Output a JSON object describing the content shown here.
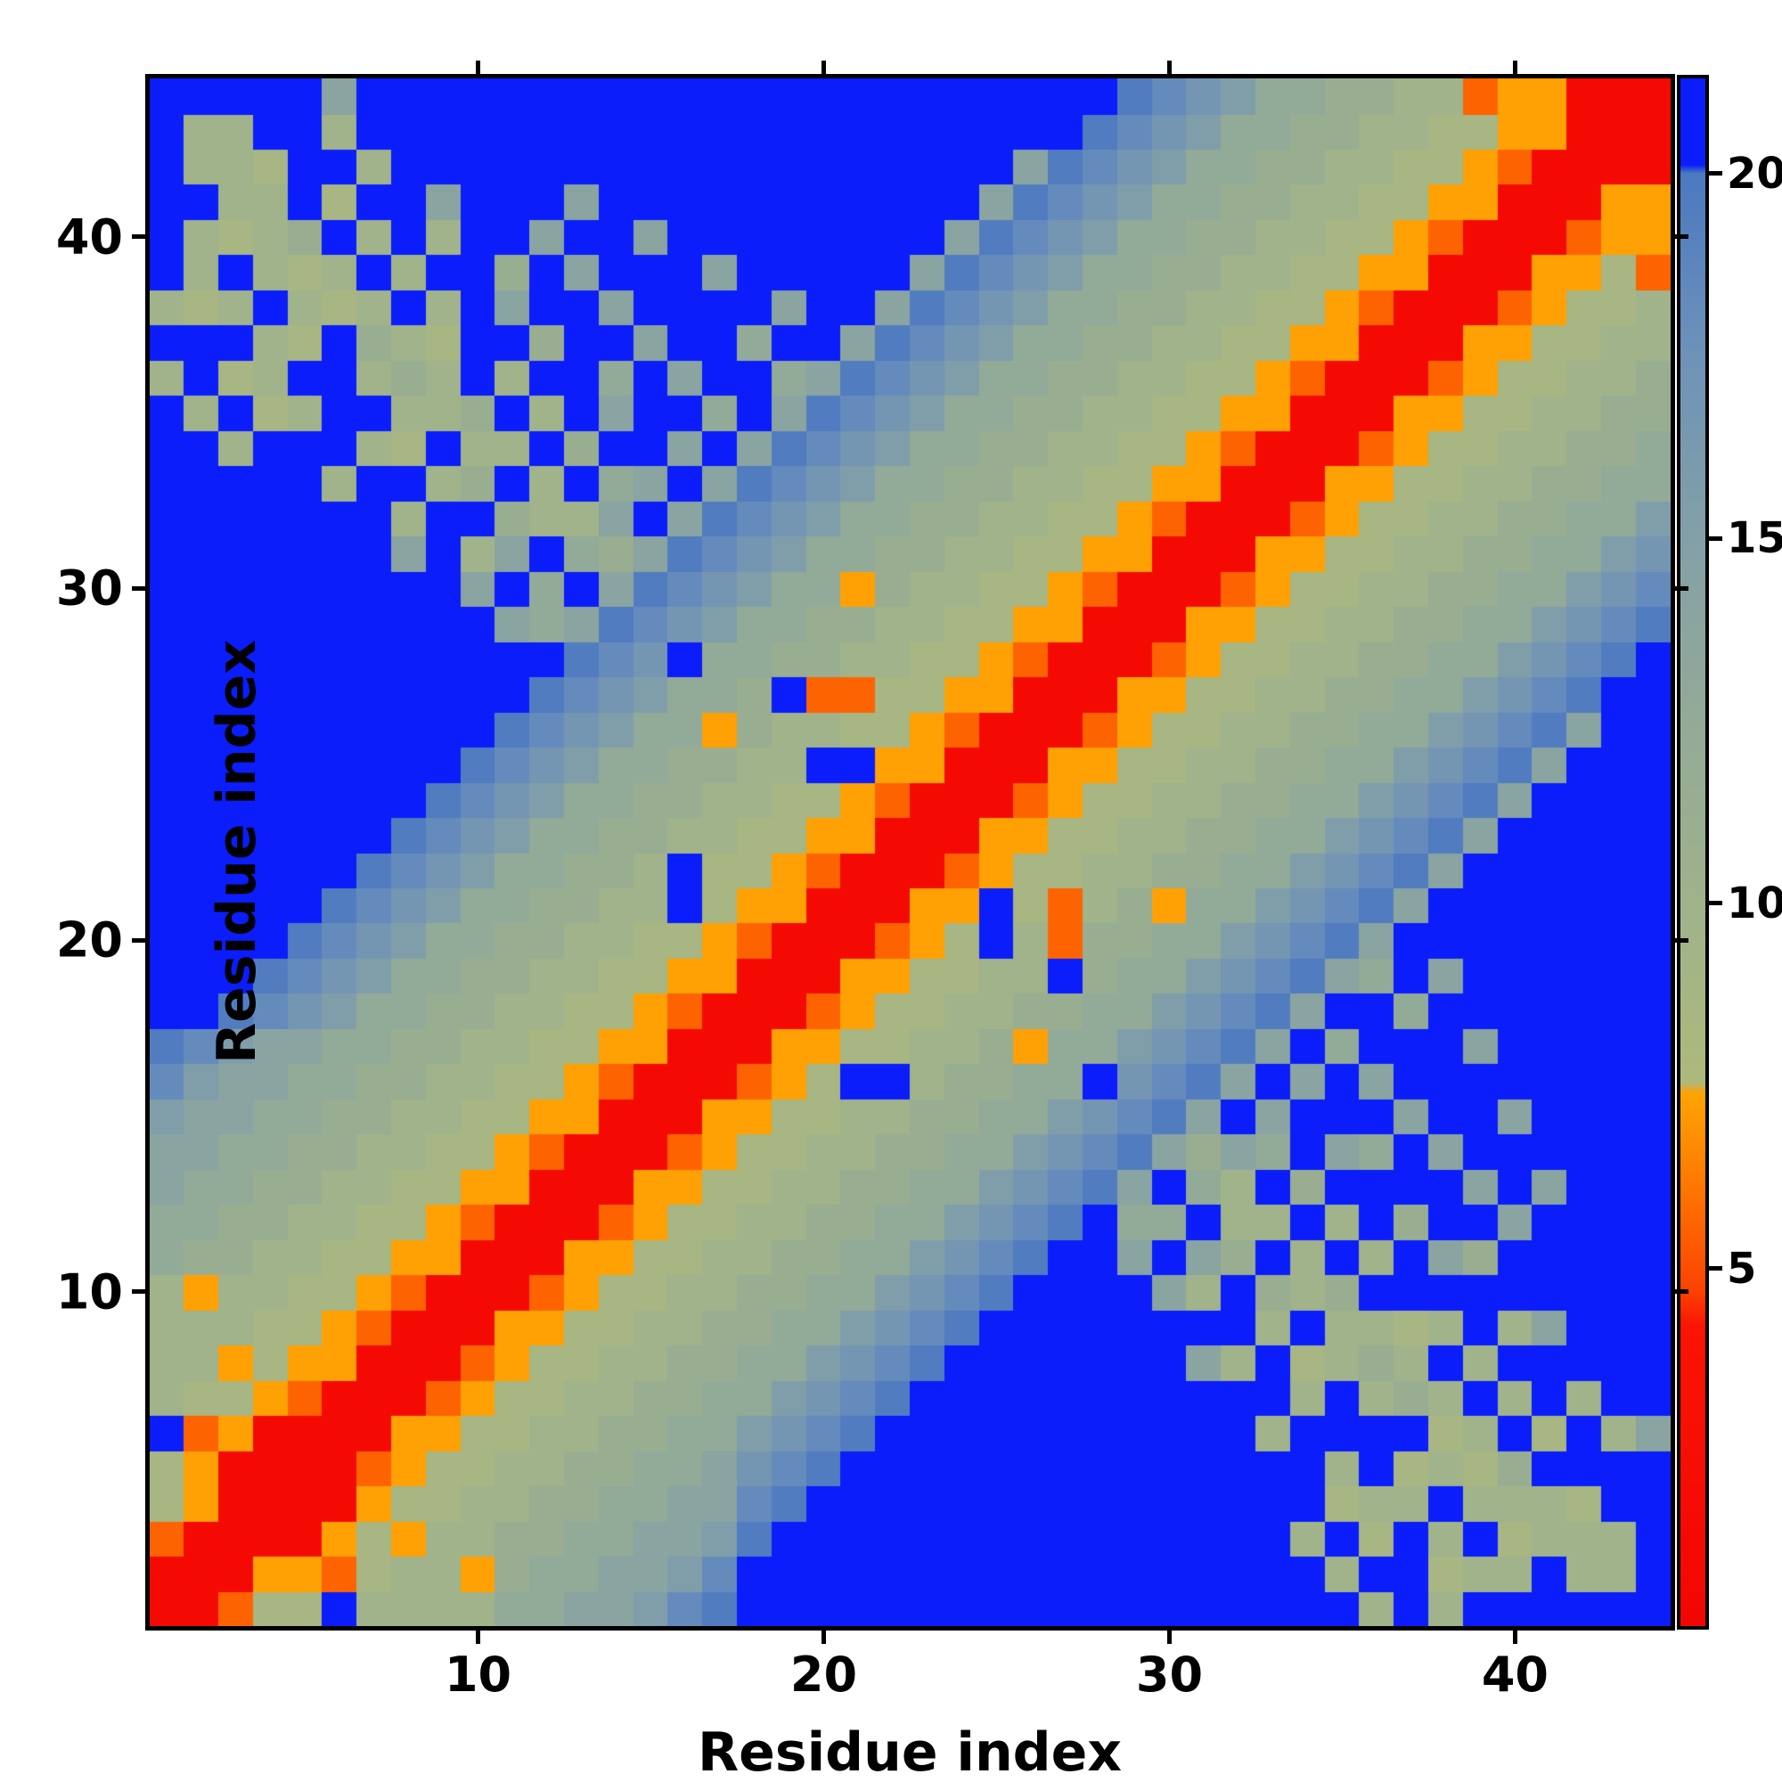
{
  "figure": {
    "title": "",
    "xlabel": "Residue index",
    "ylabel": "Residue index"
  },
  "chart_data": {
    "type": "heatmap",
    "title": "",
    "xlabel": "Residue index",
    "ylabel": "Residue index",
    "n_residues": 44,
    "x_range": [
      1,
      44
    ],
    "y_range": [
      1,
      44
    ],
    "x_ticks": [
      10,
      20,
      30,
      40
    ],
    "y_ticks": [
      10,
      20,
      30,
      40
    ],
    "grid": false,
    "description": "Symmetric residue-residue distance map of a 44-residue protein. Red/orange band along the main diagonal (short distances), diffuse green/blue anti-diagonal contact arm, saturated blue = distances beyond ~20 (capped).",
    "colorbar": {
      "orientation": "vertical",
      "min": 0.1,
      "max": 21.3,
      "ticks": [
        5,
        10,
        15,
        20
      ],
      "over_value": 20.12,
      "over_color": "#0a1dfa"
    },
    "colormap_stops": [
      [
        0.1,
        "#f20603"
      ],
      [
        4.2,
        "#fa1404"
      ],
      [
        4.7,
        "#fc4202"
      ],
      [
        6.0,
        "#fe7301"
      ],
      [
        7.4,
        "#ffa304"
      ],
      [
        7.55,
        "#adb97b"
      ],
      [
        10.0,
        "#9fb28b"
      ],
      [
        12.5,
        "#93aa97"
      ],
      [
        15.0,
        "#83a0a7"
      ],
      [
        17.5,
        "#6e92b8"
      ],
      [
        20.0,
        "#4b79c1"
      ],
      [
        20.12,
        "#0a1dfa"
      ],
      [
        21.3,
        "#0a1dfa"
      ]
    ],
    "value_key": {
      "R": 1.2,
      "O": 5.6,
      "o": 7.3,
      "g": 8.6,
      "G": 9.8,
      "m": 11.2,
      "v": 12.6,
      "b": 14.0,
      "B": 15.4,
      "s": 16.8,
      "S": 18.2,
      "D": 19.6,
      "X": 21.0
    },
    "matrix_encoding": "Lower-triangle rows for residues 1..44 (row k has k chars, columns 1..k). Full matrix is symmetric: M[r][c]=M[c][r]. Characters map to distance values via value_key.",
    "rows": [
      "R",
      "RR",
      "ORR",
      "goRR",
      "goRRR",
      "XOoRRR",
      "GggoORR",
      "GGogooRR",
      "GGGggoORR",
      "GoGGggoORR",
      "vmmGGggooRR",
      "vvmmGGggoORR",
      "bvvmmGGggooRR",
      "bbvvmmGGggoORR",
      "BbbvvmmGGggooRR",
      "SBbbvvmmGGggoORR",
      "DSBbbvvmmGGggooRR",
      "XXDSsBvvmmGGggoORR",
      "XXXDSsBvvmmGGggooRR",
      "XXXXDSsBvvmmGGggoORR",
      "XXXXXDSsBvvmmGGXgooRR",
      "XXXXXXDSsBvvmmGXggoORR",
      "XXXXXXXDSsBvvmmGGggooRR",
      "XXXXXXXXDSsBvvmmGGggoORR",
      "XXXXXXXXXDSsBvvmmGGXXooRR",
      "XXXXXXXXXXDSsBvvomGGggoORR",
      "XXXXXXXXXXXDSsBvvmXOOggooRR",
      "XXXXXXXXXXXXDSsXvvmmGGggoORR",
      "XXXXXXXXXXbvbDSsBvvmmGGggooRR",
      "XXXXXXXXXbXvXbDSsBvvomGGggoORR",
      "XXXXXXXbXGbXvmbDSsBvvmmGGggooRR",
      "XXXXXXXGXXmGGbXbDSsBvvmmGGggoORR",
      "XXXXXGXXGmXGXvbXbDSsBvvmmGGggooRR",
      "XXGXXXGgXGGXmXXbXbDSsBvvmmGGggoORR",
      "XGXgGXXGGmXGXbXXvXbDSsBvvmmGGggooRR",
      "GXgGXXGmGXGXXvXbXXvbDSsBvvmmGGggoORR",
      "XXXGgXmGgXXmXXbXXvXXbDSsBvvmmGGggooRR",
      "GgGXGgGXGXbXXbXXXXbXXbDSsBvvmmGGggoORR",
      "XGXGgGXGXXmXbXXXbXXXXXbDSsBvvmmGGggooRR",
      "XGgGmXGXGXXbXXbXXXXXXXXbDSsBvvmmGGggoORR",
      "XXGGXgXXbXXXbXXXXXXXXXXXbDSsBvvmmGGggooRR",
      "XGGgXXGXXXXXXXXXXXXXXXXXXbDSsBvvmmGGggoORR",
      "XGGXXGXXXXXXXXXXXXXXXXXXXXXDSsBvvmmGGggooRR",
      "XXXXXbXXXXXXXXXXXXXXXXXXXXXXDSsBvvmmGGOooRRR"
    ]
  },
  "style": {
    "spine_color": "#000000",
    "tick_color": "#000000",
    "label_color": "#000000",
    "background": "#ffffff"
  }
}
